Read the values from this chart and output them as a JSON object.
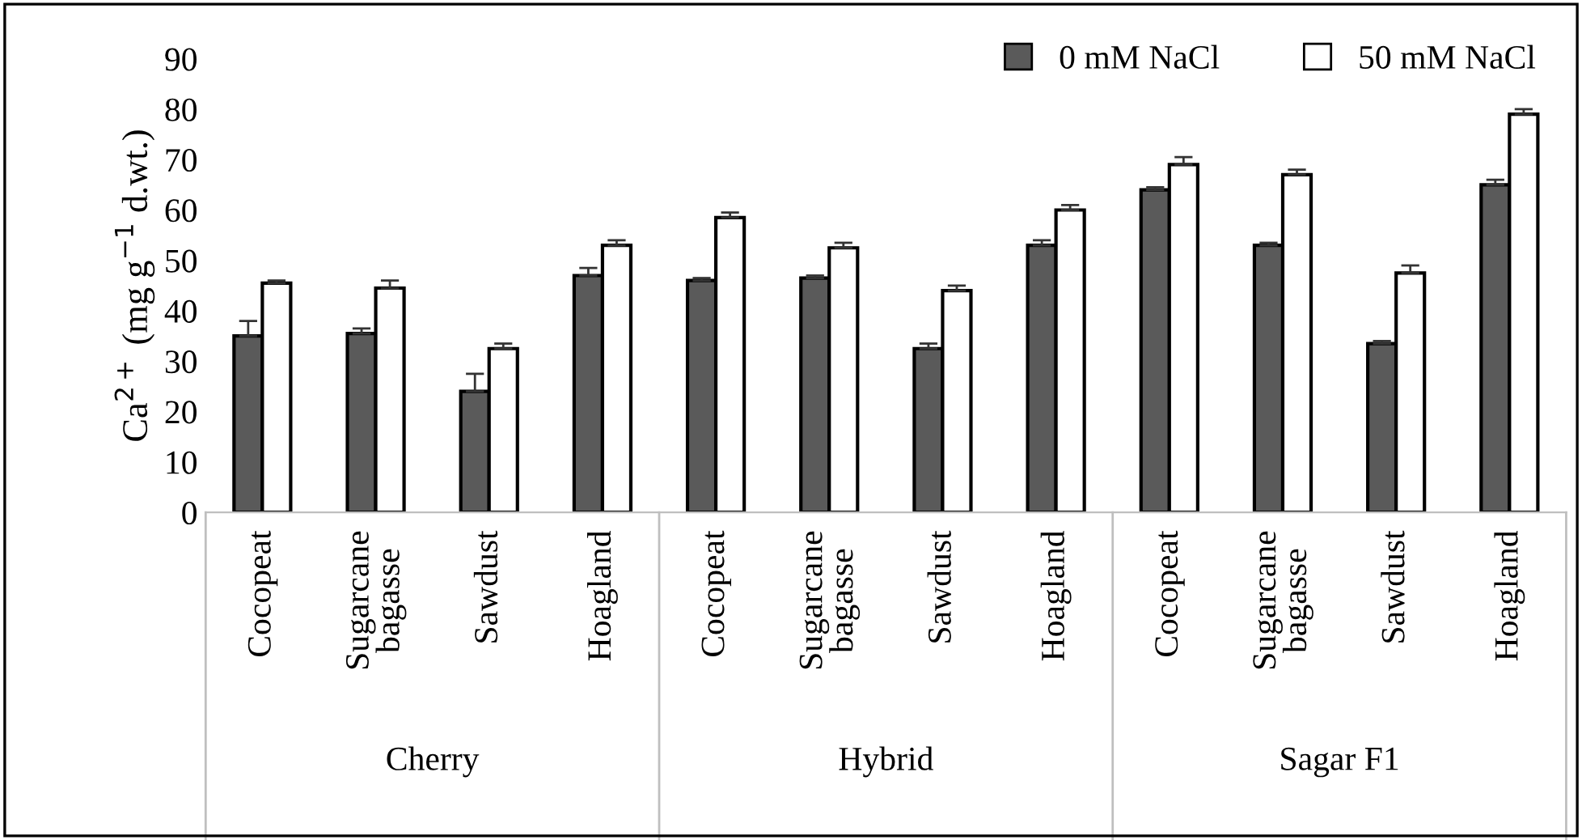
{
  "chart_data": {
    "type": "bar",
    "ylabel": "Ca$^{2+}$ (mg g$^{−1}$ d.wt.)",
    "categories": [
      "Cocopeat",
      "Sugarcane\nbagasse",
      "Sawdust",
      "Hoagland",
      "Cocopeat",
      "Sugarcane\nbagasse",
      "Sawdust",
      "Hoagland",
      "Cocopeat",
      "Sugarcane\nbagasse",
      "Sawdust",
      "Hoagland"
    ],
    "annotations": [
      "Cherry",
      "Hybrid",
      "Sagar F1"
    ],
    "series": [
      {
        "name": "0 mM NaCl",
        "color": "#5a5a5a",
        "values": [
          35,
          35.5,
          24,
          47,
          46,
          46.5,
          32.5,
          53,
          64,
          53,
          33.5,
          65
        ],
        "errors": [
          3,
          1,
          3.5,
          1.5,
          0.5,
          0.5,
          1,
          1,
          0.5,
          0.5,
          0.5,
          1
        ]
      },
      {
        "name": "50 mM NaCl",
        "color": "#ffffff",
        "values": [
          45.5,
          44.5,
          32.5,
          53,
          58.5,
          52.5,
          44,
          60,
          69,
          67,
          47.5,
          79
        ],
        "errors": [
          0.5,
          1.5,
          1,
          1,
          1,
          1,
          1,
          1,
          1.5,
          1,
          1.5,
          1
        ]
      }
    ],
    "ylim": [
      0,
      90
    ],
    "yticks": [
      0,
      10,
      20,
      30,
      40,
      50,
      60,
      70,
      80,
      90
    ],
    "grid": false,
    "legend": "top right"
  }
}
